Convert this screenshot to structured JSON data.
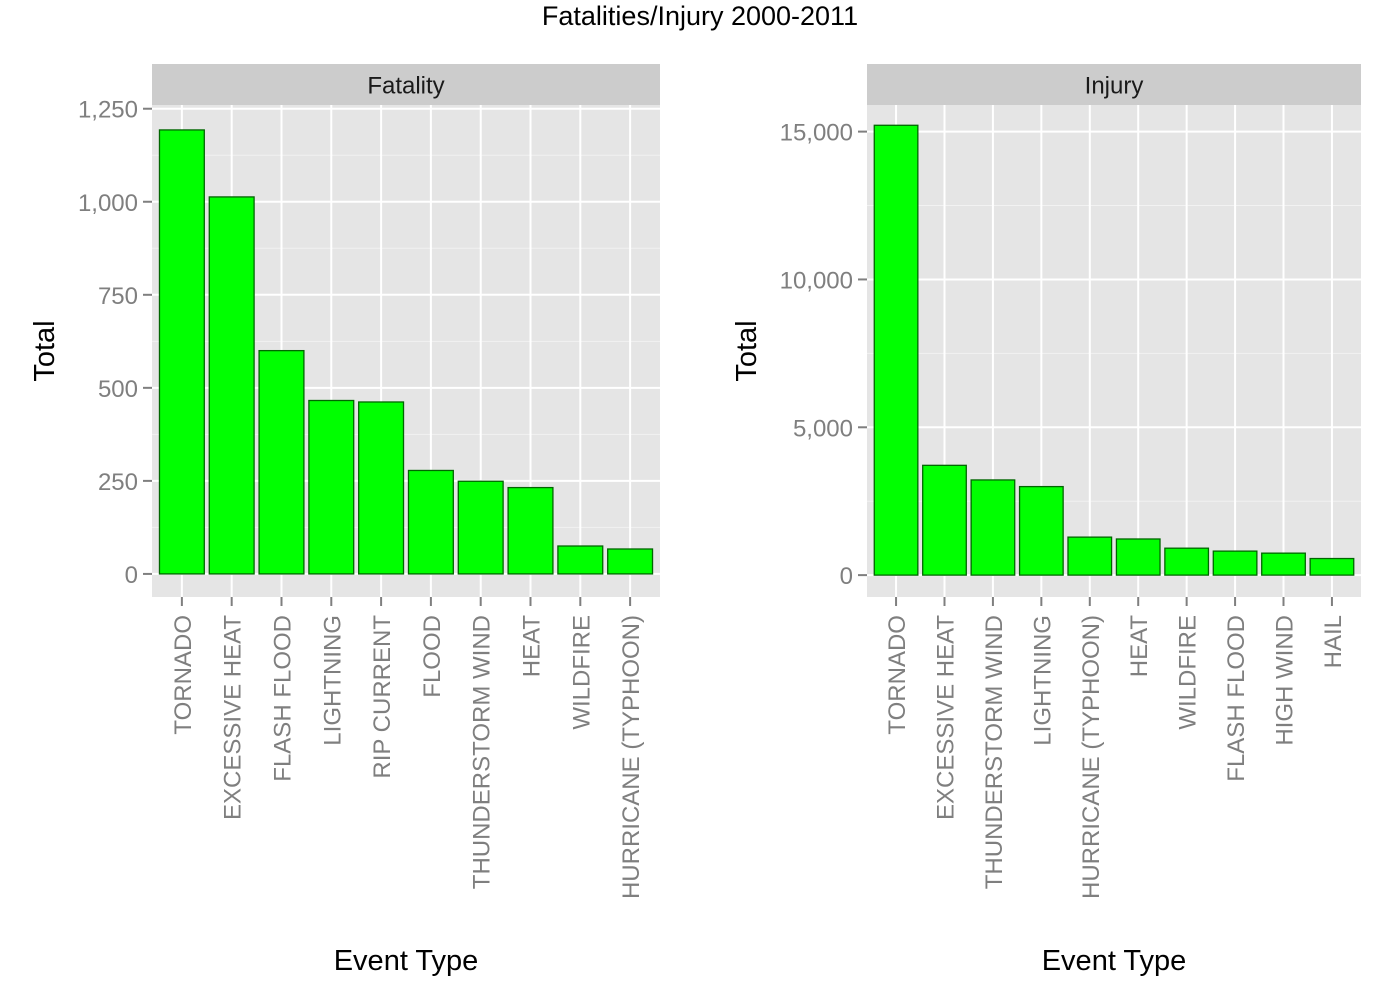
{
  "title": "Fatalities/Injury 2000-2011",
  "colors": {
    "bar_fill": "#00ff00",
    "bar_stroke": "#006600",
    "panel_bg": "#e5e5e5",
    "strip_bg": "#cccccc",
    "grid_major": "#ffffff",
    "grid_minor": "#f2f2f2"
  },
  "chart_data": [
    {
      "type": "bar",
      "panel_label": "Fatality",
      "xlabel": "Event Type",
      "ylabel": "Total",
      "ylim": [
        -62,
        1260
      ],
      "yticks": [
        0,
        250,
        500,
        750,
        1000,
        1250
      ],
      "ytick_labels": [
        "0",
        "250",
        "500",
        "750",
        "1,000",
        "1,250"
      ],
      "categories": [
        "TORNADO",
        "EXCESSIVE HEAT",
        "FLASH FLOOD",
        "LIGHTNING",
        "RIP CURRENT",
        "FLOOD",
        "THUNDERSTORM WIND",
        "HEAT",
        "WILDFIRE",
        "HURRICANE (TYPHOON)"
      ],
      "values": [
        1193,
        1013,
        600,
        466,
        462,
        278,
        249,
        232,
        75,
        67
      ],
      "grid": true
    },
    {
      "type": "bar",
      "panel_label": "Injury",
      "xlabel": "Event Type",
      "ylabel": "Total",
      "ylim": [
        -740,
        15900
      ],
      "yticks": [
        0,
        5000,
        10000,
        15000
      ],
      "ytick_labels": [
        "0",
        "5,000",
        "10,000",
        "15,000"
      ],
      "categories": [
        "TORNADO",
        "EXCESSIVE HEAT",
        "THUNDERSTORM WIND",
        "LIGHTNING",
        "HURRICANE (TYPHOON)",
        "HEAT",
        "WILDFIRE",
        "FLASH FLOOD",
        "HIGH WIND",
        "HAIL"
      ],
      "values": [
        15214,
        3713,
        3219,
        2994,
        1285,
        1222,
        911,
        812,
        743,
        561
      ],
      "grid": true
    }
  ]
}
